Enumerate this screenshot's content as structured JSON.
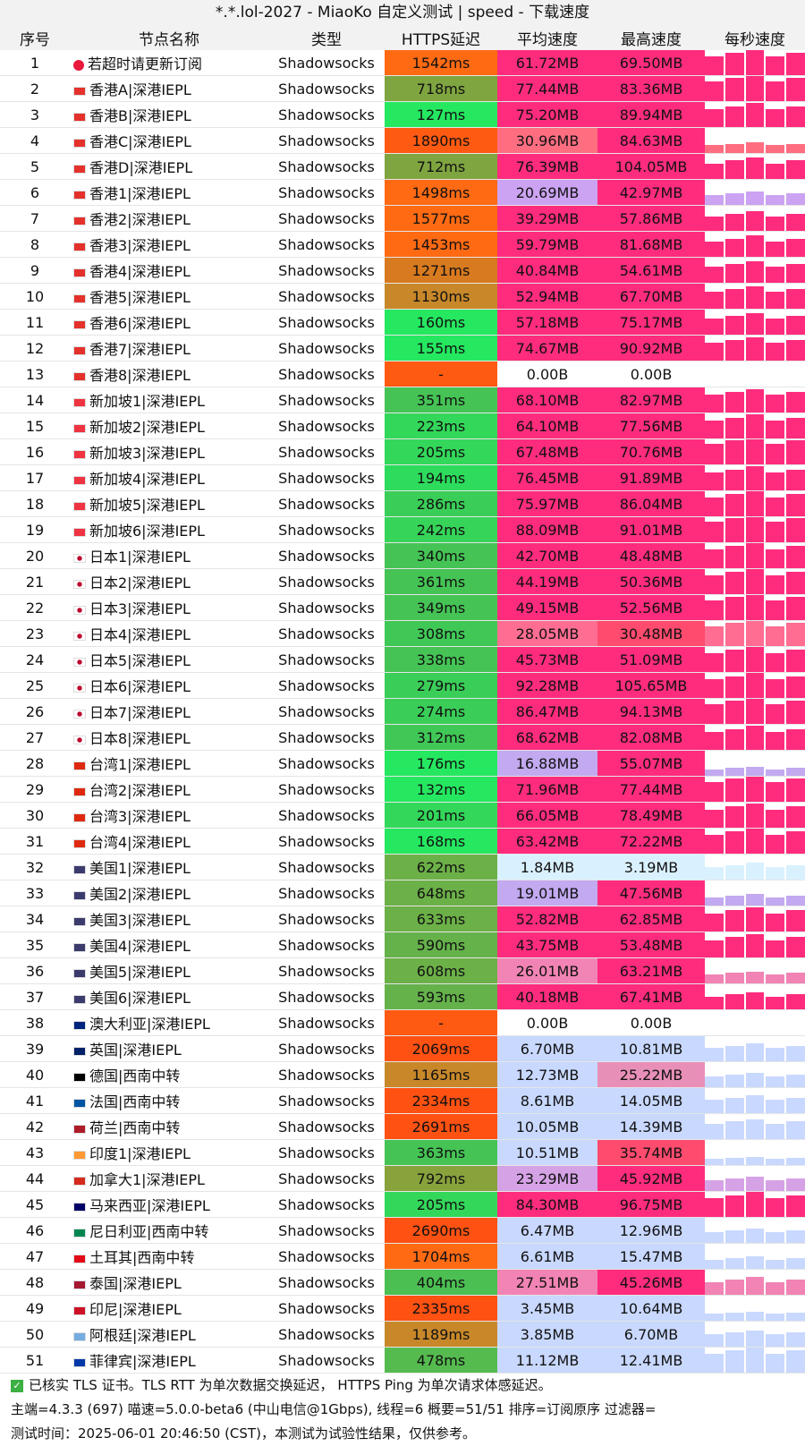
{
  "title": "*.*.lol-2027 - MiaoKo 自定义测试 | speed - 下载速度",
  "headers": [
    "序号",
    "节点名称",
    "类型",
    "HTTPS延迟",
    "平均速度",
    "最高速度",
    "每秒速度"
  ],
  "rows": [
    {
      "i": "1",
      "flag": "red-dot",
      "name": "若超时请更新订阅",
      "type": "Shadowsocks",
      "lat": "1542ms",
      "avg": "61.72MB",
      "max": "69.50MB",
      "lc": "#ff6a13",
      "ac": "#ff2c7d",
      "mc": "#ff2c7d"
    },
    {
      "i": "2",
      "flag": "hk-flag",
      "name": "香港A|深港IEPL",
      "type": "Shadowsocks",
      "lat": "718ms",
      "avg": "77.44MB",
      "max": "83.36MB",
      "lc": "#7fa540",
      "ac": "#ff2c7d",
      "mc": "#ff2c7d"
    },
    {
      "i": "3",
      "flag": "hk-flag",
      "name": "香港B|深港IEPL",
      "type": "Shadowsocks",
      "lat": "127ms",
      "avg": "75.20MB",
      "max": "89.94MB",
      "lc": "#25e860",
      "ac": "#ff2c7d",
      "mc": "#ff2c7d"
    },
    {
      "i": "4",
      "flag": "hk-flag",
      "name": "香港C|深港IEPL",
      "type": "Shadowsocks",
      "lat": "1890ms",
      "avg": "30.96MB",
      "max": "84.63MB",
      "lc": "#ff5a12",
      "ac": "#ff6d81",
      "mc": "#ff2c7d"
    },
    {
      "i": "5",
      "flag": "hk-flag",
      "name": "香港D|深港IEPL",
      "type": "Shadowsocks",
      "lat": "712ms",
      "avg": "76.39MB",
      "max": "104.05MB",
      "lc": "#7fa540",
      "ac": "#ff2c7d",
      "mc": "#ff2c7d"
    },
    {
      "i": "6",
      "flag": "hk-flag",
      "name": "香港1|深港IEPL",
      "type": "Shadowsocks",
      "lat": "1498ms",
      "avg": "20.69MB",
      "max": "42.97MB",
      "lc": "#ff6a13",
      "ac": "#cba3f2",
      "mc": "#ff2c7d"
    },
    {
      "i": "7",
      "flag": "hk-flag",
      "name": "香港2|深港IEPL",
      "type": "Shadowsocks",
      "lat": "1577ms",
      "avg": "39.29MB",
      "max": "57.86MB",
      "lc": "#ff6a13",
      "ac": "#ff2c7d",
      "mc": "#ff2c7d"
    },
    {
      "i": "8",
      "flag": "hk-flag",
      "name": "香港3|深港IEPL",
      "type": "Shadowsocks",
      "lat": "1453ms",
      "avg": "59.79MB",
      "max": "81.68MB",
      "lc": "#ff6a13",
      "ac": "#ff2c7d",
      "mc": "#ff2c7d"
    },
    {
      "i": "9",
      "flag": "hk-flag",
      "name": "香港4|深港IEPL",
      "type": "Shadowsocks",
      "lat": "1271ms",
      "avg": "40.84MB",
      "max": "54.61MB",
      "lc": "#d87a1f",
      "ac": "#ff2c7d",
      "mc": "#ff2c7d"
    },
    {
      "i": "10",
      "flag": "hk-flag",
      "name": "香港5|深港IEPL",
      "type": "Shadowsocks",
      "lat": "1130ms",
      "avg": "52.94MB",
      "max": "67.70MB",
      "lc": "#c8882a",
      "ac": "#ff2c7d",
      "mc": "#ff2c7d"
    },
    {
      "i": "11",
      "flag": "hk-flag",
      "name": "香港6|深港IEPL",
      "type": "Shadowsocks",
      "lat": "160ms",
      "avg": "57.18MB",
      "max": "75.17MB",
      "lc": "#25e860",
      "ac": "#ff2c7d",
      "mc": "#ff2c7d"
    },
    {
      "i": "12",
      "flag": "hk-flag",
      "name": "香港7|深港IEPL",
      "type": "Shadowsocks",
      "lat": "155ms",
      "avg": "74.67MB",
      "max": "90.92MB",
      "lc": "#25e860",
      "ac": "#ff2c7d",
      "mc": "#ff2c7d"
    },
    {
      "i": "13",
      "flag": "hk-flag",
      "name": "香港8|深港IEPL",
      "type": "Shadowsocks",
      "lat": "-",
      "avg": "0.00B",
      "max": "0.00B",
      "lc": "#ff5a12",
      "ac": "#ffffff",
      "mc": "#ffffff"
    },
    {
      "i": "14",
      "flag": "sg-flag",
      "name": "新加坡1|深港IEPL",
      "type": "Shadowsocks",
      "lat": "351ms",
      "avg": "68.10MB",
      "max": "82.97MB",
      "lc": "#45c455",
      "ac": "#ff2c7d",
      "mc": "#ff2c7d"
    },
    {
      "i": "15",
      "flag": "sg-flag",
      "name": "新加坡2|深港IEPL",
      "type": "Shadowsocks",
      "lat": "223ms",
      "avg": "64.10MB",
      "max": "77.56MB",
      "lc": "#33d85a",
      "ac": "#ff2c7d",
      "mc": "#ff2c7d"
    },
    {
      "i": "16",
      "flag": "sg-flag",
      "name": "新加坡3|深港IEPL",
      "type": "Shadowsocks",
      "lat": "205ms",
      "avg": "67.48MB",
      "max": "70.76MB",
      "lc": "#33d85a",
      "ac": "#ff2c7d",
      "mc": "#ff2c7d"
    },
    {
      "i": "17",
      "flag": "sg-flag",
      "name": "新加坡4|深港IEPL",
      "type": "Shadowsocks",
      "lat": "194ms",
      "avg": "76.45MB",
      "max": "91.89MB",
      "lc": "#2ddc5c",
      "ac": "#ff2c7d",
      "mc": "#ff2c7d"
    },
    {
      "i": "18",
      "flag": "sg-flag",
      "name": "新加坡5|深港IEPL",
      "type": "Shadowsocks",
      "lat": "286ms",
      "avg": "75.97MB",
      "max": "86.04MB",
      "lc": "#3ace58",
      "ac": "#ff2c7d",
      "mc": "#ff2c7d"
    },
    {
      "i": "19",
      "flag": "sg-flag",
      "name": "新加坡6|深港IEPL",
      "type": "Shadowsocks",
      "lat": "242ms",
      "avg": "88.09MB",
      "max": "91.01MB",
      "lc": "#36d459",
      "ac": "#ff2c7d",
      "mc": "#ff2c7d"
    },
    {
      "i": "20",
      "flag": "jp-flag",
      "name": "日本1|深港IEPL",
      "type": "Shadowsocks",
      "lat": "340ms",
      "avg": "42.70MB",
      "max": "48.48MB",
      "lc": "#45c455",
      "ac": "#ff2c7d",
      "mc": "#ff2c7d"
    },
    {
      "i": "21",
      "flag": "jp-flag",
      "name": "日本2|深港IEPL",
      "type": "Shadowsocks",
      "lat": "361ms",
      "avg": "44.19MB",
      "max": "50.36MB",
      "lc": "#45c455",
      "ac": "#ff2c7d",
      "mc": "#ff2c7d"
    },
    {
      "i": "22",
      "flag": "jp-flag",
      "name": "日本3|深港IEPL",
      "type": "Shadowsocks",
      "lat": "349ms",
      "avg": "49.15MB",
      "max": "52.56MB",
      "lc": "#45c455",
      "ac": "#ff2c7d",
      "mc": "#ff2c7d"
    },
    {
      "i": "23",
      "flag": "jp-flag",
      "name": "日本4|深港IEPL",
      "type": "Shadowsocks",
      "lat": "308ms",
      "avg": "28.05MB",
      "max": "30.48MB",
      "lc": "#40c857",
      "ac": "#ff6d92",
      "mc": "#ff4b6e"
    },
    {
      "i": "24",
      "flag": "jp-flag",
      "name": "日本5|深港IEPL",
      "type": "Shadowsocks",
      "lat": "338ms",
      "avg": "45.73MB",
      "max": "51.09MB",
      "lc": "#45c455",
      "ac": "#ff2c7d",
      "mc": "#ff2c7d"
    },
    {
      "i": "25",
      "flag": "jp-flag",
      "name": "日本6|深港IEPL",
      "type": "Shadowsocks",
      "lat": "279ms",
      "avg": "92.28MB",
      "max": "105.65MB",
      "lc": "#3ace58",
      "ac": "#ff2c7d",
      "mc": "#ff2c7d"
    },
    {
      "i": "26",
      "flag": "jp-flag",
      "name": "日本7|深港IEPL",
      "type": "Shadowsocks",
      "lat": "274ms",
      "avg": "86.47MB",
      "max": "94.13MB",
      "lc": "#3ace58",
      "ac": "#ff2c7d",
      "mc": "#ff2c7d"
    },
    {
      "i": "27",
      "flag": "jp-flag",
      "name": "日本8|深港IEPL",
      "type": "Shadowsocks",
      "lat": "312ms",
      "avg": "68.62MB",
      "max": "82.08MB",
      "lc": "#40c857",
      "ac": "#ff2c7d",
      "mc": "#ff2c7d"
    },
    {
      "i": "28",
      "flag": "cn-flag",
      "name": "台湾1|深港IEPL",
      "type": "Shadowsocks",
      "lat": "176ms",
      "avg": "16.88MB",
      "max": "55.07MB",
      "lc": "#25e860",
      "ac": "#c2a9f0",
      "mc": "#ff2c7d"
    },
    {
      "i": "29",
      "flag": "cn-flag",
      "name": "台湾2|深港IEPL",
      "type": "Shadowsocks",
      "lat": "132ms",
      "avg": "71.96MB",
      "max": "77.44MB",
      "lc": "#25e860",
      "ac": "#ff2c7d",
      "mc": "#ff2c7d"
    },
    {
      "i": "30",
      "flag": "cn-flag",
      "name": "台湾3|深港IEPL",
      "type": "Shadowsocks",
      "lat": "201ms",
      "avg": "66.05MB",
      "max": "78.49MB",
      "lc": "#33d85a",
      "ac": "#ff2c7d",
      "mc": "#ff2c7d"
    },
    {
      "i": "31",
      "flag": "cn-flag",
      "name": "台湾4|深港IEPL",
      "type": "Shadowsocks",
      "lat": "168ms",
      "avg": "63.42MB",
      "max": "72.22MB",
      "lc": "#25e860",
      "ac": "#ff2c7d",
      "mc": "#ff2c7d"
    },
    {
      "i": "32",
      "flag": "us-flag",
      "name": "美国1|深港IEPL",
      "type": "Shadowsocks",
      "lat": "622ms",
      "avg": "1.84MB",
      "max": "3.19MB",
      "lc": "#6cb048",
      "ac": "#d9f1ff",
      "mc": "#d9f1ff"
    },
    {
      "i": "33",
      "flag": "us-flag",
      "name": "美国2|深港IEPL",
      "type": "Shadowsocks",
      "lat": "648ms",
      "avg": "19.01MB",
      "max": "47.56MB",
      "lc": "#6cb048",
      "ac": "#c2a9f0",
      "mc": "#ff2c7d"
    },
    {
      "i": "34",
      "flag": "us-flag",
      "name": "美国3|深港IEPL",
      "type": "Shadowsocks",
      "lat": "633ms",
      "avg": "52.82MB",
      "max": "62.85MB",
      "lc": "#6cb048",
      "ac": "#ff2c7d",
      "mc": "#ff2c7d"
    },
    {
      "i": "35",
      "flag": "us-flag",
      "name": "美国4|深港IEPL",
      "type": "Shadowsocks",
      "lat": "590ms",
      "avg": "43.75MB",
      "max": "53.48MB",
      "lc": "#65b24b",
      "ac": "#ff2c7d",
      "mc": "#ff2c7d"
    },
    {
      "i": "36",
      "flag": "us-flag",
      "name": "美国5|深港IEPL",
      "type": "Shadowsocks",
      "lat": "608ms",
      "avg": "26.01MB",
      "max": "63.21MB",
      "lc": "#6cb048",
      "ac": "#f184b4",
      "mc": "#ff2c7d"
    },
    {
      "i": "37",
      "flag": "us-flag",
      "name": "美国6|深港IEPL",
      "type": "Shadowsocks",
      "lat": "593ms",
      "avg": "40.18MB",
      "max": "67.41MB",
      "lc": "#65b24b",
      "ac": "#ff2c7d",
      "mc": "#ff2c7d"
    },
    {
      "i": "38",
      "flag": "au-flag",
      "name": "澳大利亚|深港IEPL",
      "type": "Shadowsocks",
      "lat": "-",
      "avg": "0.00B",
      "max": "0.00B",
      "lc": "#ff5a12",
      "ac": "#ffffff",
      "mc": "#ffffff"
    },
    {
      "i": "39",
      "flag": "uk-flag",
      "name": "英国|深港IEPL",
      "type": "Shadowsocks",
      "lat": "2069ms",
      "avg": "6.70MB",
      "max": "10.81MB",
      "lc": "#ff5112",
      "ac": "#c8d8ff",
      "mc": "#c8d8ff"
    },
    {
      "i": "40",
      "flag": "de-flag",
      "name": "德国|西南中转",
      "type": "Shadowsocks",
      "lat": "1165ms",
      "avg": "12.73MB",
      "max": "25.22MB",
      "lc": "#c8882a",
      "ac": "#c8d8ff",
      "mc": "#e88fb8"
    },
    {
      "i": "41",
      "flag": "fr-flag",
      "name": "法国|西南中转",
      "type": "Shadowsocks",
      "lat": "2334ms",
      "avg": "8.61MB",
      "max": "14.05MB",
      "lc": "#ff5112",
      "ac": "#c8d8ff",
      "mc": "#c8d8ff"
    },
    {
      "i": "42",
      "flag": "nl-flag",
      "name": "荷兰|西南中转",
      "type": "Shadowsocks",
      "lat": "2691ms",
      "avg": "10.05MB",
      "max": "14.39MB",
      "lc": "#ff5112",
      "ac": "#c8d8ff",
      "mc": "#c8d8ff"
    },
    {
      "i": "43",
      "flag": "in-flag",
      "name": "印度1|深港IEPL",
      "type": "Shadowsocks",
      "lat": "363ms",
      "avg": "10.51MB",
      "max": "35.74MB",
      "lc": "#45c455",
      "ac": "#c8d8ff",
      "mc": "#ff4b6e"
    },
    {
      "i": "44",
      "flag": "ca-flag",
      "name": "加拿大1|深港IEPL",
      "type": "Shadowsocks",
      "lat": "792ms",
      "avg": "23.29MB",
      "max": "45.92MB",
      "lc": "#88a23c",
      "ac": "#d6a2e6",
      "mc": "#ff2c7d"
    },
    {
      "i": "45",
      "flag": "my-flag",
      "name": "马来西亚|深港IEPL",
      "type": "Shadowsocks",
      "lat": "205ms",
      "avg": "84.30MB",
      "max": "96.75MB",
      "lc": "#33d85a",
      "ac": "#ff2c7d",
      "mc": "#ff2c7d"
    },
    {
      "i": "46",
      "flag": "ng-flag",
      "name": "尼日利亚|西南中转",
      "type": "Shadowsocks",
      "lat": "2690ms",
      "avg": "6.47MB",
      "max": "12.96MB",
      "lc": "#ff5112",
      "ac": "#c8d8ff",
      "mc": "#c8d8ff"
    },
    {
      "i": "47",
      "flag": "tr-flag",
      "name": "土耳其|西南中转",
      "type": "Shadowsocks",
      "lat": "1704ms",
      "avg": "6.61MB",
      "max": "15.47MB",
      "lc": "#ff6a13",
      "ac": "#c8d8ff",
      "mc": "#c8d8ff"
    },
    {
      "i": "48",
      "flag": "th-flag",
      "name": "泰国|深港IEPL",
      "type": "Shadowsocks",
      "lat": "404ms",
      "avg": "27.51MB",
      "max": "45.26MB",
      "lc": "#4cbf52",
      "ac": "#f184b4",
      "mc": "#ff2c7d"
    },
    {
      "i": "49",
      "flag": "id-flag",
      "name": "印尼|深港IEPL",
      "type": "Shadowsocks",
      "lat": "2335ms",
      "avg": "3.45MB",
      "max": "10.64MB",
      "lc": "#ff5112",
      "ac": "#c8d8ff",
      "mc": "#c8d8ff"
    },
    {
      "i": "50",
      "flag": "ar-flag",
      "name": "阿根廷|深港IEPL",
      "type": "Shadowsocks",
      "lat": "1189ms",
      "avg": "3.85MB",
      "max": "6.70MB",
      "lc": "#c8882a",
      "ac": "#c8d8ff",
      "mc": "#c8d8ff"
    },
    {
      "i": "51",
      "flag": "ph-flag",
      "name": "菲律宾|深港IEPL",
      "type": "Shadowsocks",
      "lat": "478ms",
      "avg": "11.12MB",
      "max": "12.41MB",
      "lc": "#55bb4f",
      "ac": "#c8d8ff",
      "mc": "#c8d8ff"
    }
  ],
  "footer": {
    "line1": "已核实 TLS 证书。TLS RTT 为单次数据交换延迟， HTTPS Ping 为单次请求体感延迟。",
    "line2": "主端=4.3.3 (697) 喵速=5.0.0-beta6 (中山电信@1Gbps), 线程=6 概要=51/51 排序=订阅原序 过滤器=",
    "line3": "测试时间：2025-06-01 20:46:50 (CST)，本测试为试验性结果，仅供参考。"
  }
}
